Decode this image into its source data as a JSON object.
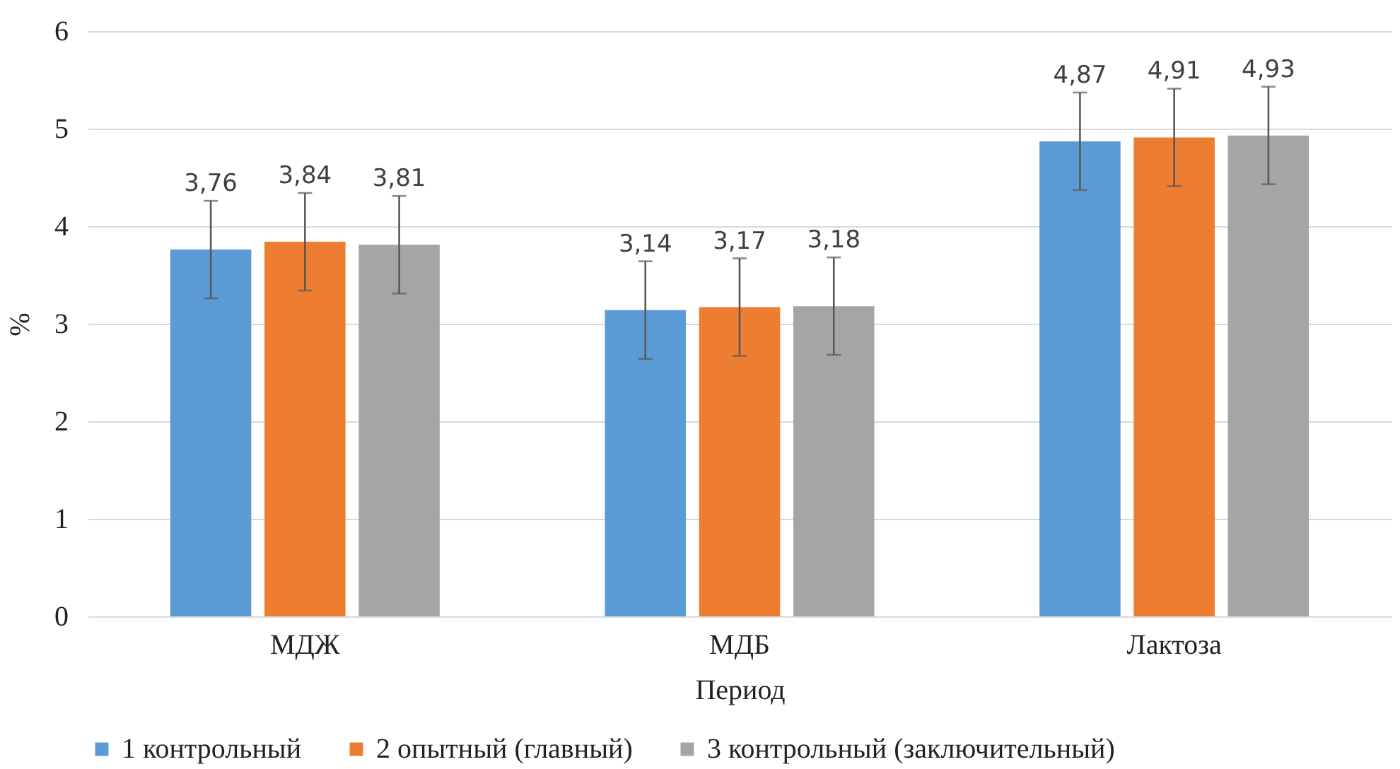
{
  "chart_data": {
    "type": "bar",
    "xlabel": "Период",
    "ylabel": "%",
    "categories": [
      "МДЖ",
      "МДБ",
      "Лактоза"
    ],
    "series": [
      {
        "name": "1 контрольный",
        "color": "#5b9bd5",
        "values": [
          3.76,
          3.14,
          4.87
        ],
        "errors": [
          0.5,
          0.5,
          0.5
        ],
        "value_labels": [
          "3,76",
          "3,14",
          "4,87"
        ]
      },
      {
        "name": "2 опытный (главный)",
        "color": "#ed7d31",
        "values": [
          3.84,
          3.17,
          4.91
        ],
        "errors": [
          0.5,
          0.5,
          0.5
        ],
        "value_labels": [
          "3,84",
          "3,17",
          "4,91"
        ]
      },
      {
        "name": "3 контрольный (заключительный)",
        "color": "#a5a5a5",
        "values": [
          3.81,
          3.18,
          4.93
        ],
        "errors": [
          0.5,
          0.5,
          0.5
        ],
        "value_labels": [
          "3,81",
          "3,18",
          "4,93"
        ]
      }
    ],
    "ylim": [
      0,
      6
    ],
    "yticks": [
      0,
      1,
      2,
      3,
      4,
      5,
      6
    ],
    "grid": "y",
    "legend": "bottom"
  }
}
